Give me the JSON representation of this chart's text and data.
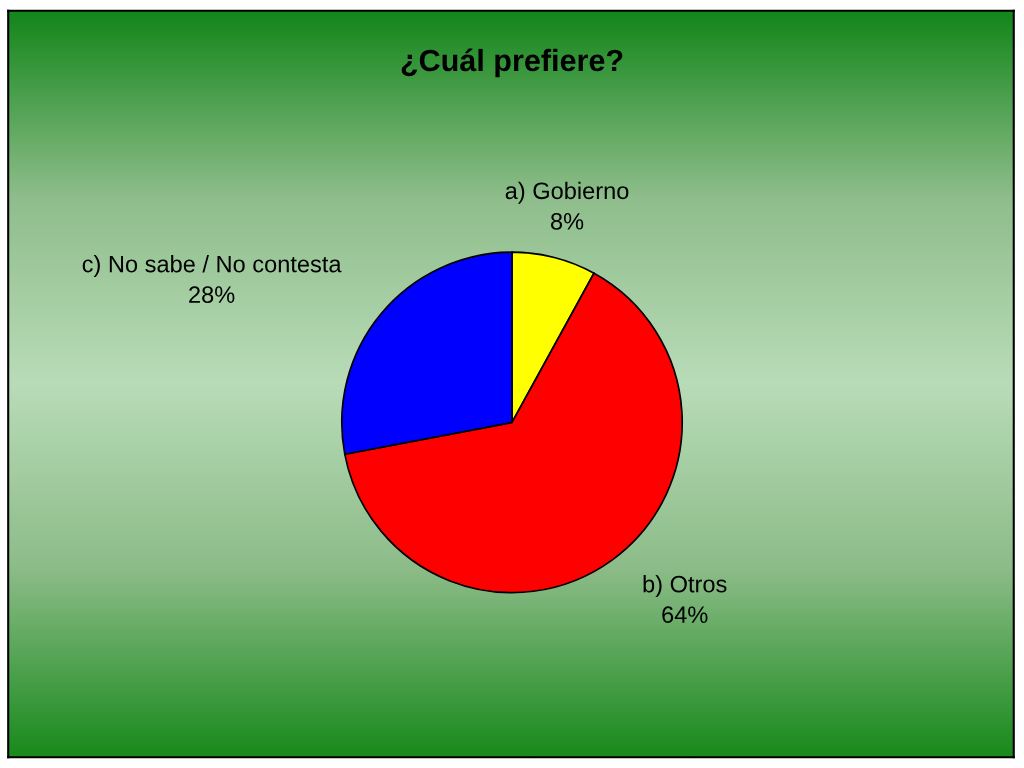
{
  "chart_data": {
    "type": "pie",
    "title": "¿Cuál prefiere?",
    "categories": [
      "a) Gobierno",
      "b) Otros",
      "c) No sabe / No contesta"
    ],
    "values": [
      8,
      64,
      28
    ],
    "value_labels": [
      "8%",
      "64%",
      "28%"
    ],
    "colors": [
      "#ffff00",
      "#ff0000",
      "#0000ff"
    ]
  }
}
